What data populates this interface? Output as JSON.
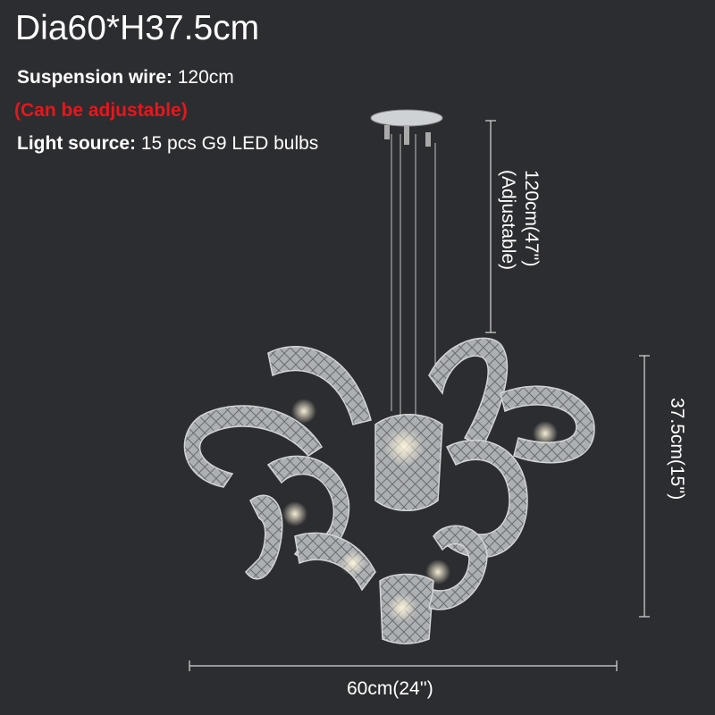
{
  "title": "Dia60*H37.5cm",
  "specs": {
    "suspension_label": "Suspension wire:",
    "suspension_value": "120cm",
    "adjustable_note": "(Can be adjustable)",
    "light_label": "Light source:",
    "light_value": "15 pcs G9 LED bulbs"
  },
  "dimensions": {
    "wire_length": "120cm(47'')",
    "wire_note": "(Adjustable)",
    "height": "37.5cm(15'')",
    "width": "60cm(24'')"
  },
  "colors": {
    "background": "#2c2d30",
    "note": "#e8161b",
    "text": "#ffffff"
  }
}
